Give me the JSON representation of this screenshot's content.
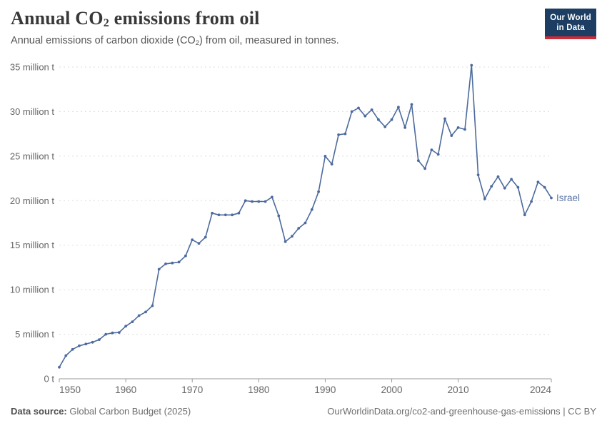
{
  "header": {
    "title_pre": "Annual CO",
    "title_sub": "2",
    "title_post": " emissions from oil",
    "subtitle_pre": "Annual emissions of carbon dioxide (CO",
    "subtitle_sub": "2",
    "subtitle_post": ") from oil, measured in tonnes.",
    "logo_line1": "Our World",
    "logo_line2": "in Data"
  },
  "chart_data": {
    "type": "line",
    "title": "Annual CO2 emissions from oil",
    "unit": "million tonnes of CO2",
    "entity_label": "Israel",
    "grid": true,
    "xlim": [
      1950,
      2024
    ],
    "ylim": [
      0,
      35
    ],
    "x": [
      1950,
      1951,
      1952,
      1953,
      1954,
      1955,
      1956,
      1957,
      1958,
      1959,
      1960,
      1961,
      1962,
      1963,
      1964,
      1965,
      1966,
      1967,
      1968,
      1969,
      1970,
      1971,
      1972,
      1973,
      1974,
      1975,
      1976,
      1977,
      1978,
      1979,
      1980,
      1981,
      1982,
      1983,
      1984,
      1985,
      1986,
      1987,
      1988,
      1989,
      1990,
      1991,
      1992,
      1993,
      1994,
      1995,
      1996,
      1997,
      1998,
      1999,
      2000,
      2001,
      2002,
      2003,
      2004,
      2005,
      2006,
      2007,
      2008,
      2009,
      2010,
      2011,
      2012,
      2013,
      2014,
      2015,
      2016,
      2017,
      2018,
      2019,
      2020,
      2021,
      2022,
      2023,
      2024
    ],
    "series": [
      {
        "name": "Israel",
        "values": [
          1.3,
          2.6,
          3.3,
          3.7,
          3.9,
          4.1,
          4.4,
          5.0,
          5.15,
          5.2,
          5.9,
          6.4,
          7.1,
          7.5,
          8.2,
          12.3,
          12.9,
          13.0,
          13.1,
          13.8,
          15.6,
          15.2,
          15.9,
          18.6,
          18.4,
          18.4,
          18.4,
          18.6,
          20.0,
          19.9,
          19.9,
          19.9,
          20.4,
          18.3,
          15.4,
          16.0,
          16.9,
          17.5,
          19.0,
          21.0,
          25.0,
          24.1,
          27.4,
          27.5,
          30.0,
          30.4,
          29.5,
          30.2,
          29.1,
          28.3,
          29.1,
          30.5,
          28.2,
          30.8,
          24.5,
          23.6,
          25.7,
          25.2,
          29.2,
          27.3,
          28.2,
          28.0,
          35.2,
          22.9,
          20.2,
          21.6,
          22.7,
          21.4,
          22.4,
          21.5,
          18.4,
          19.9,
          22.1,
          21.5,
          20.3
        ]
      }
    ],
    "y_ticks": [
      {
        "value": 0,
        "label": "0 t"
      },
      {
        "value": 5,
        "label": "5 million t"
      },
      {
        "value": 10,
        "label": "10 million t"
      },
      {
        "value": 15,
        "label": "15 million t"
      },
      {
        "value": 20,
        "label": "20 million t"
      },
      {
        "value": 25,
        "label": "25 million t"
      },
      {
        "value": 30,
        "label": "30 million t"
      },
      {
        "value": 35,
        "label": "35 million t"
      }
    ],
    "x_ticks": [
      {
        "value": 1950,
        "label": "1950"
      },
      {
        "value": 1960,
        "label": "1960"
      },
      {
        "value": 1970,
        "label": "1970"
      },
      {
        "value": 1980,
        "label": "1980"
      },
      {
        "value": 1990,
        "label": "1990"
      },
      {
        "value": 2000,
        "label": "2000"
      },
      {
        "value": 2010,
        "label": "2010"
      },
      {
        "value": 2024,
        "label": "2024"
      }
    ],
    "colors": {
      "line": "#4C6A9D",
      "entity_label": "#5b74a5",
      "gridline": "#dddddd",
      "axis": "#999999",
      "tick_text": "#666666"
    },
    "legend_position": "end-of-line"
  },
  "footer": {
    "source_label": "Data source:",
    "source_value": " Global Carbon Budget (2025)",
    "right_text": "OurWorldinData.org/co2-and-greenhouse-gas-emissions | CC BY"
  }
}
